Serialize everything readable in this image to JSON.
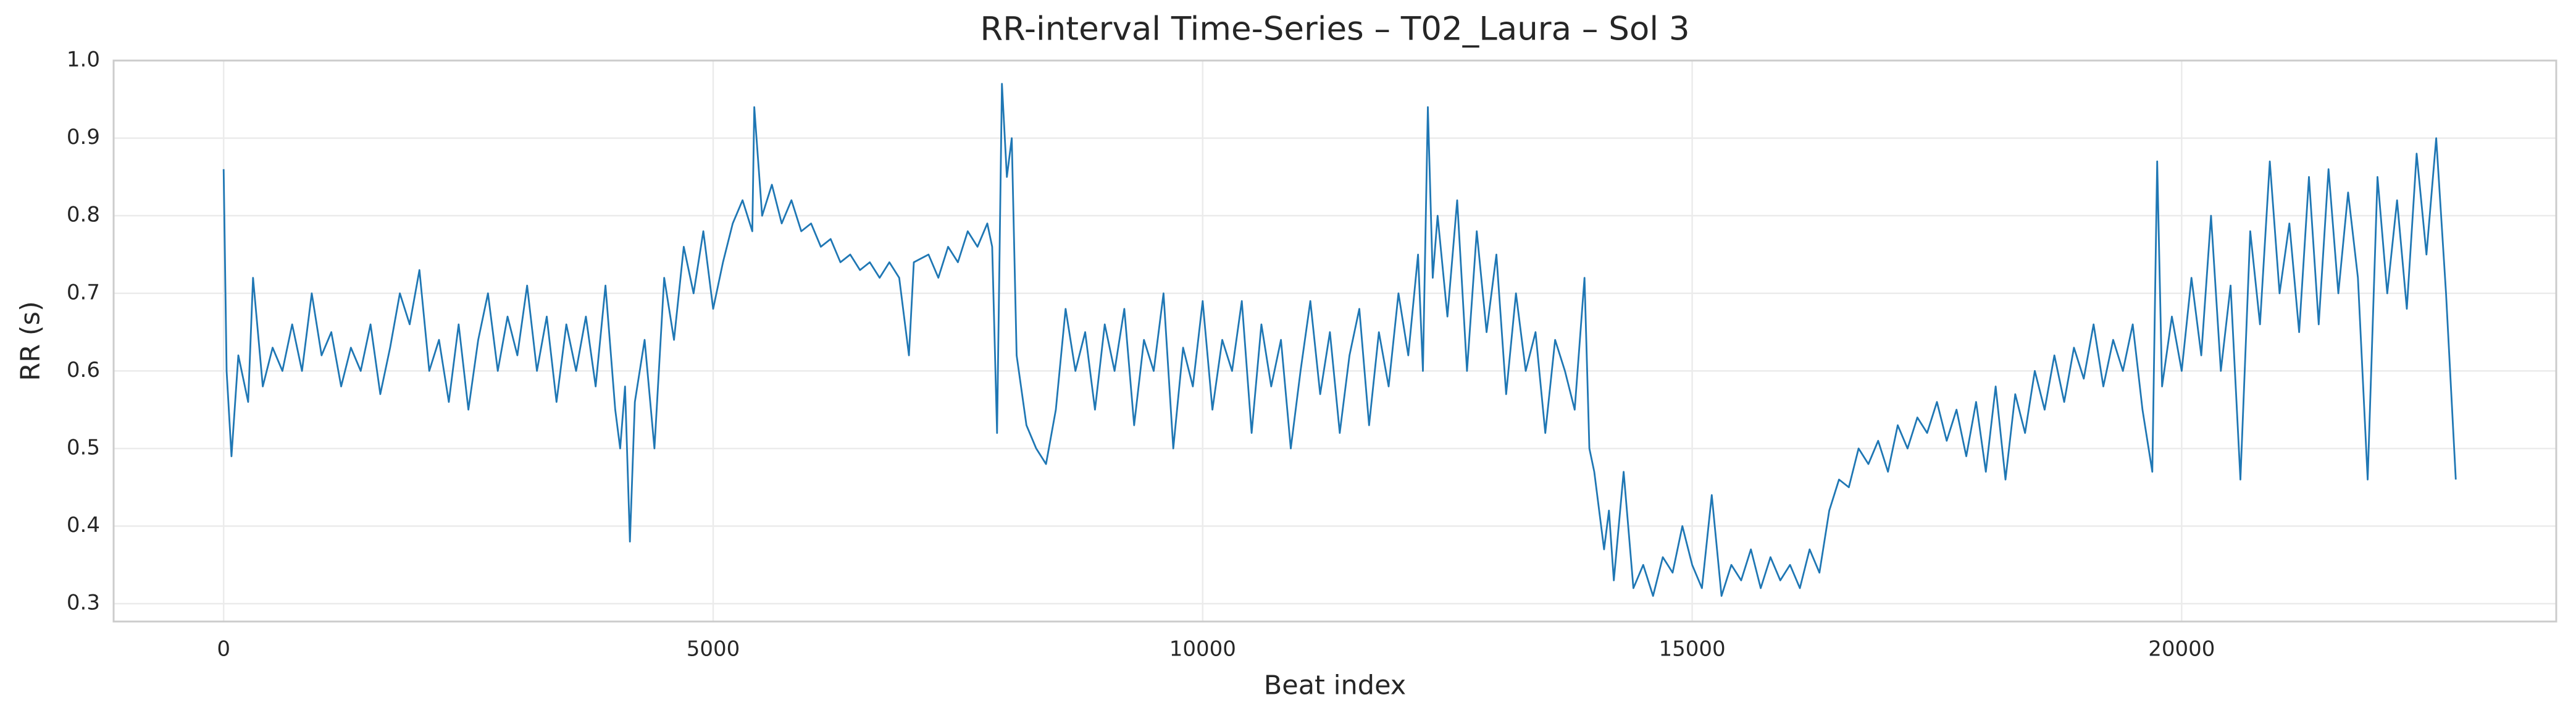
{
  "chart_data": {
    "type": "line",
    "title": "RR-interval Time-Series – T02_Laura – Sol 3",
    "x_label": "Beat index",
    "y_label": "RR (s)",
    "color": "#1f77b4",
    "grid": true,
    "xlim": [
      -1124,
      23826
    ],
    "ylim": [
      0.277,
      1.0
    ],
    "xticks": [
      0,
      5000,
      10000,
      15000,
      20000
    ],
    "yticks": [
      0.3,
      0.4,
      0.5,
      0.6,
      0.7,
      0.8,
      0.9,
      {
        "value": 1,
        "label": "1.0"
      }
    ],
    "x": [
      0,
      30,
      80,
      150,
      250,
      300,
      400,
      500,
      600,
      700,
      800,
      900,
      1000,
      1100,
      1200,
      1300,
      1400,
      1500,
      1600,
      1700,
      1800,
      1900,
      2000,
      2100,
      2200,
      2300,
      2400,
      2500,
      2600,
      2700,
      2800,
      2900,
      3000,
      3100,
      3200,
      3300,
      3400,
      3500,
      3600,
      3700,
      3800,
      3900,
      4000,
      4050,
      4100,
      4150,
      4200,
      4300,
      4400,
      4500,
      4600,
      4700,
      4800,
      4900,
      5000,
      5100,
      5200,
      5300,
      5400,
      5420,
      5500,
      5600,
      5700,
      5800,
      5900,
      6000,
      6100,
      6200,
      6300,
      6400,
      6500,
      6600,
      6700,
      6800,
      6900,
      7000,
      7050,
      7200,
      7300,
      7400,
      7500,
      7600,
      7700,
      7800,
      7850,
      7900,
      7950,
      8000,
      8050,
      8100,
      8200,
      8300,
      8400,
      8500,
      8600,
      8700,
      8800,
      8900,
      9000,
      9100,
      9200,
      9300,
      9400,
      9500,
      9600,
      9700,
      9800,
      9900,
      10000,
      10100,
      10200,
      10300,
      10400,
      10500,
      10600,
      10700,
      10800,
      10900,
      11000,
      11100,
      11200,
      11300,
      11400,
      11500,
      11600,
      11700,
      11800,
      11900,
      12000,
      12100,
      12200,
      12250,
      12300,
      12350,
      12400,
      12500,
      12600,
      12700,
      12800,
      12900,
      13000,
      13100,
      13200,
      13300,
      13400,
      13500,
      13600,
      13700,
      13800,
      13900,
      13950,
      14000,
      14100,
      14150,
      14200,
      14300,
      14400,
      14500,
      14600,
      14700,
      14800,
      14900,
      15000,
      15100,
      15200,
      15300,
      15400,
      15500,
      15600,
      15700,
      15800,
      15900,
      16000,
      16100,
      16200,
      16300,
      16400,
      16500,
      16600,
      16700,
      16800,
      16900,
      17000,
      17100,
      17200,
      17300,
      17400,
      17500,
      17600,
      17700,
      17800,
      17900,
      18000,
      18100,
      18200,
      18300,
      18400,
      18500,
      18600,
      18700,
      18800,
      18900,
      19000,
      19100,
      19200,
      19300,
      19400,
      19500,
      19600,
      19700,
      19750,
      19800,
      19900,
      20000,
      20100,
      20200,
      20300,
      20400,
      20500,
      20600,
      20700,
      20800,
      20900,
      21000,
      21100,
      21200,
      21300,
      21400,
      21500,
      21600,
      21700,
      21800,
      21900,
      22000,
      22100,
      22200,
      22300,
      22400,
      22500,
      22600,
      22700,
      22800
    ],
    "values": [
      0.86,
      0.6,
      0.49,
      0.62,
      0.56,
      0.72,
      0.58,
      0.63,
      0.6,
      0.66,
      0.6,
      0.7,
      0.62,
      0.65,
      0.58,
      0.63,
      0.6,
      0.66,
      0.57,
      0.63,
      0.7,
      0.66,
      0.73,
      0.6,
      0.64,
      0.56,
      0.66,
      0.55,
      0.64,
      0.7,
      0.6,
      0.67,
      0.62,
      0.71,
      0.6,
      0.67,
      0.56,
      0.66,
      0.6,
      0.67,
      0.58,
      0.71,
      0.55,
      0.5,
      0.58,
      0.38,
      0.56,
      0.64,
      0.5,
      0.72,
      0.64,
      0.76,
      0.7,
      0.78,
      0.68,
      0.74,
      0.79,
      0.82,
      0.78,
      0.94,
      0.8,
      0.84,
      0.79,
      0.82,
      0.78,
      0.79,
      0.76,
      0.77,
      0.74,
      0.75,
      0.73,
      0.74,
      0.72,
      0.74,
      0.72,
      0.62,
      0.74,
      0.75,
      0.72,
      0.76,
      0.74,
      0.78,
      0.76,
      0.79,
      0.76,
      0.52,
      0.97,
      0.85,
      0.9,
      0.62,
      0.53,
      0.5,
      0.48,
      0.55,
      0.68,
      0.6,
      0.65,
      0.55,
      0.66,
      0.6,
      0.68,
      0.53,
      0.64,
      0.6,
      0.7,
      0.5,
      0.63,
      0.58,
      0.69,
      0.55,
      0.64,
      0.6,
      0.69,
      0.52,
      0.66,
      0.58,
      0.64,
      0.5,
      0.6,
      0.69,
      0.57,
      0.65,
      0.52,
      0.62,
      0.68,
      0.53,
      0.65,
      0.58,
      0.7,
      0.62,
      0.75,
      0.6,
      0.94,
      0.72,
      0.8,
      0.67,
      0.82,
      0.6,
      0.78,
      0.65,
      0.75,
      0.57,
      0.7,
      0.6,
      0.65,
      0.52,
      0.64,
      0.6,
      0.55,
      0.72,
      0.5,
      0.47,
      0.37,
      0.42,
      0.33,
      0.47,
      0.32,
      0.35,
      0.31,
      0.36,
      0.34,
      0.4,
      0.35,
      0.32,
      0.44,
      0.31,
      0.35,
      0.33,
      0.37,
      0.32,
      0.36,
      0.33,
      0.35,
      0.32,
      0.37,
      0.34,
      0.42,
      0.46,
      0.45,
      0.5,
      0.48,
      0.51,
      0.47,
      0.53,
      0.5,
      0.54,
      0.52,
      0.56,
      0.51,
      0.55,
      0.49,
      0.56,
      0.47,
      0.58,
      0.46,
      0.57,
      0.52,
      0.6,
      0.55,
      0.62,
      0.56,
      0.63,
      0.59,
      0.66,
      0.58,
      0.64,
      0.6,
      0.66,
      0.55,
      0.47,
      0.87,
      0.58,
      0.67,
      0.6,
      0.72,
      0.62,
      0.8,
      0.6,
      0.71,
      0.46,
      0.78,
      0.66,
      0.87,
      0.7,
      0.79,
      0.65,
      0.85,
      0.66,
      0.86,
      0.7,
      0.83,
      0.72,
      0.46,
      0.85,
      0.7,
      0.82,
      0.68,
      0.88,
      0.75,
      0.9,
      0.7,
      0.46
    ]
  }
}
